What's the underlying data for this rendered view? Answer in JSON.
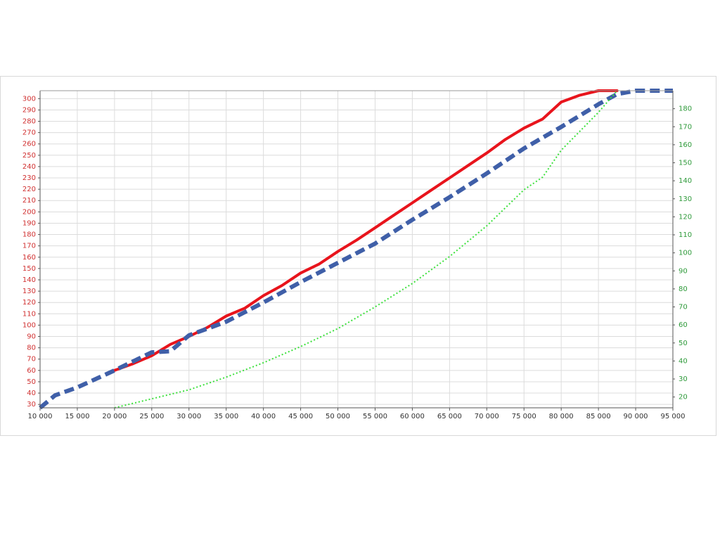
{
  "chart_data": {
    "type": "line",
    "xlim": [
      10000,
      95000
    ],
    "xticks": [
      {
        "value": 10000,
        "label": "10 000"
      },
      {
        "value": 15000,
        "label": "15 000"
      },
      {
        "value": 20000,
        "label": "20 000"
      },
      {
        "value": 25000,
        "label": "25 000"
      },
      {
        "value": 30000,
        "label": "30 000"
      },
      {
        "value": 35000,
        "label": "35 000"
      },
      {
        "value": 40000,
        "label": "40 000"
      },
      {
        "value": 45000,
        "label": "45 000"
      },
      {
        "value": 50000,
        "label": "50 000"
      },
      {
        "value": 55000,
        "label": "55 000"
      },
      {
        "value": 60000,
        "label": "60 000"
      },
      {
        "value": 65000,
        "label": "65 000"
      },
      {
        "value": 70000,
        "label": "70 000"
      },
      {
        "value": 75000,
        "label": "75 000"
      },
      {
        "value": 80000,
        "label": "80 000"
      },
      {
        "value": 85000,
        "label": "85 000"
      },
      {
        "value": 90000,
        "label": "90 000"
      },
      {
        "value": 95000,
        "label": "95 000"
      }
    ],
    "ylim": [
      27,
      307
    ],
    "yticks": [
      30,
      40,
      50,
      60,
      70,
      80,
      90,
      100,
      110,
      120,
      130,
      140,
      150,
      160,
      170,
      180,
      190,
      200,
      210,
      220,
      230,
      240,
      250,
      260,
      270,
      280,
      290,
      300
    ],
    "y2lim": [
      14,
      190
    ],
    "y2ticks": [
      20,
      30,
      40,
      50,
      60,
      70,
      80,
      90,
      100,
      110,
      120,
      130,
      140,
      150,
      160,
      170,
      180
    ],
    "ytick_color": "#d03030",
    "y2tick_color": "#2e9a3a",
    "grid": true,
    "series": [
      {
        "color": "#e8141c",
        "line_style": "solid",
        "width": 4,
        "x": [
          20000,
          22500,
          25000,
          27500,
          30000,
          32500,
          35000,
          37500,
          40000,
          42500,
          45000,
          47500,
          50000,
          52500,
          55000,
          57500,
          60000,
          62500,
          65000,
          67500,
          70000,
          72500,
          75000,
          77500,
          80000,
          82500,
          85000,
          87500
        ],
        "values": [
          60,
          66,
          73,
          83,
          90,
          98,
          108,
          115,
          126,
          135,
          146,
          154,
          165,
          175,
          186,
          197,
          208,
          219,
          230,
          241,
          252,
          264,
          274,
          282,
          297,
          303,
          307,
          307
        ]
      },
      {
        "color": "#3f5fa8",
        "line_style": "dashed",
        "width": 6,
        "x": [
          10000,
          12000,
          15000,
          20000,
          25000,
          27500,
          30000,
          35000,
          40000,
          45000,
          50000,
          55000,
          60000,
          65000,
          70000,
          75000,
          80000,
          85000,
          87500,
          90000,
          95000
        ],
        "values": [
          27,
          38,
          45,
          60,
          76,
          77,
          91,
          103,
          120,
          138,
          155,
          172,
          193,
          213,
          234,
          256,
          275,
          295,
          304,
          307,
          307
        ]
      },
      {
        "color": "#3ee03e",
        "line_style": "dotted",
        "width": 2,
        "axis": "y2",
        "x": [
          20000,
          25000,
          30000,
          35000,
          40000,
          45000,
          50000,
          55000,
          60000,
          65000,
          70000,
          75000,
          77500,
          80000,
          85000,
          87500
        ],
        "values": [
          14,
          19,
          24,
          31,
          39,
          48,
          58,
          70,
          83,
          98,
          115,
          135,
          142,
          157,
          178,
          190
        ]
      }
    ]
  }
}
